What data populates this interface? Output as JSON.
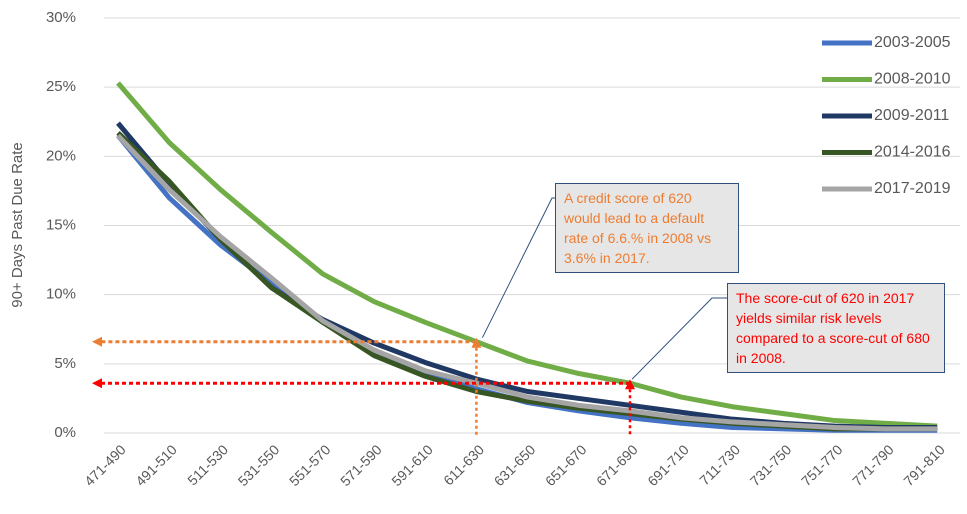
{
  "chart_data": {
    "type": "line",
    "y_label": "90+ Days Past Due Rate",
    "categories": [
      "471-490",
      "491-510",
      "511-530",
      "531-550",
      "551-570",
      "571-590",
      "591-610",
      "611-630",
      "631-650",
      "651-670",
      "671-690",
      "691-710",
      "711-730",
      "731-750",
      "751-770",
      "771-790",
      "791-810"
    ],
    "series": [
      {
        "name": "2003-2005",
        "color": "#4472c4",
        "values": [
          21.5,
          17.0,
          13.6,
          10.8,
          8.0,
          5.8,
          4.3,
          3.2,
          2.2,
          1.6,
          1.1,
          0.7,
          0.4,
          0.3,
          0.2,
          0.2,
          0.2
        ]
      },
      {
        "name": "2008-2010",
        "color": "#70ad47",
        "values": [
          25.3,
          21.0,
          17.6,
          14.5,
          11.5,
          9.5,
          8.0,
          6.6,
          5.2,
          4.3,
          3.6,
          2.6,
          1.9,
          1.4,
          0.9,
          0.7,
          0.5
        ]
      },
      {
        "name": "2009-2011",
        "color": "#203864",
        "values": [
          22.4,
          18.0,
          14.0,
          10.5,
          8.2,
          6.5,
          5.1,
          3.9,
          3.0,
          2.5,
          2.0,
          1.5,
          1.0,
          0.7,
          0.5,
          0.4,
          0.4
        ]
      },
      {
        "name": "2014-2016",
        "color": "#375623",
        "values": [
          21.7,
          18.2,
          14.0,
          10.5,
          8.0,
          5.6,
          4.1,
          3.0,
          2.3,
          1.8,
          1.4,
          1.0,
          0.7,
          0.5,
          0.3,
          0.3,
          0.3
        ]
      },
      {
        "name": "2017-2019",
        "color": "#a5a5a5",
        "values": [
          21.5,
          17.6,
          14.2,
          11.2,
          8.1,
          6.0,
          4.5,
          3.6,
          2.6,
          2.0,
          1.6,
          1.1,
          0.8,
          0.6,
          0.4,
          0.3,
          0.3
        ]
      }
    ],
    "ylim": [
      0,
      30
    ],
    "yticks": [
      {
        "value": 0,
        "label": "0%"
      },
      {
        "value": 5,
        "label": "5%"
      },
      {
        "value": 10,
        "label": "10%"
      },
      {
        "value": 15,
        "label": "15%"
      },
      {
        "value": 20,
        "label": "20%"
      },
      {
        "value": 25,
        "label": "25%"
      },
      {
        "value": 30,
        "label": "30%"
      }
    ],
    "grid": true,
    "legend": "right",
    "annotations": [
      {
        "text": "A credit score of 620 would lead to a default rate of 6.6.% in 2008 vs 3.6% in 2017.",
        "color": "#ed7d31"
      },
      {
        "text": "The score-cut of 620 in 2017 yields similar risk levels compared to a score-cut of 680 in 2008.",
        "color": "#ff0000"
      }
    ]
  }
}
